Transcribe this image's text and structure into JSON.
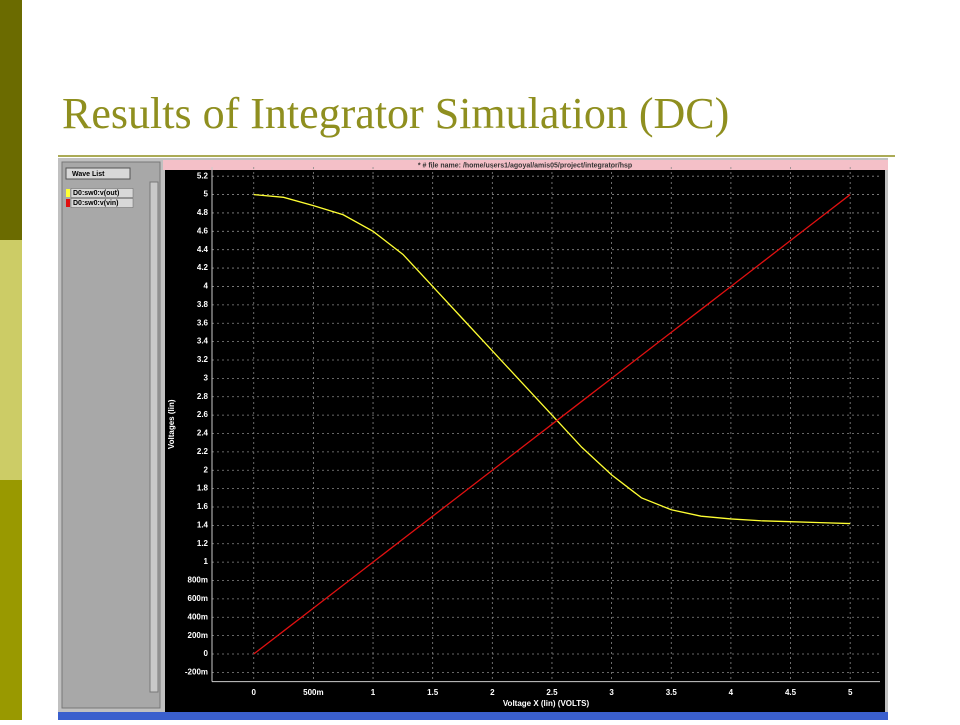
{
  "chart_data": {
    "type": "line",
    "title": "Results of Integrator Simulation (DC)",
    "subtitle": "* # file name: /home/users1/agoyal/amis05/project/integrator/hsp",
    "legend_title": "Wave List",
    "x_label": "Voltage X (lin) (VOLTS)",
    "y_label": "Voltages (lin)",
    "x": [
      0,
      0.25,
      0.5,
      0.75,
      1,
      1.25,
      1.5,
      1.75,
      2,
      2.25,
      2.5,
      2.75,
      3,
      3.25,
      3.5,
      3.75,
      4,
      4.25,
      4.5,
      4.75,
      5
    ],
    "series": [
      {
        "name": "D0:sw0:v(out)",
        "color": "#ffff33",
        "values": [
          5.0,
          4.97,
          4.88,
          4.78,
          4.6,
          4.35,
          4.0,
          3.65,
          3.3,
          2.95,
          2.6,
          2.25,
          1.95,
          1.7,
          1.57,
          1.5,
          1.47,
          1.45,
          1.44,
          1.43,
          1.42
        ]
      },
      {
        "name": "D0:sw0:v(vin)",
        "color": "#e01010",
        "values": [
          0,
          0.25,
          0.5,
          0.75,
          1,
          1.25,
          1.5,
          1.75,
          2,
          2.25,
          2.5,
          2.75,
          3,
          3.25,
          3.5,
          3.75,
          4,
          4.25,
          4.5,
          4.75,
          5
        ]
      }
    ],
    "xlim": [
      -0.35,
      5.25
    ],
    "ylim": [
      -0.3,
      5.3
    ],
    "xticks": [
      0,
      {
        "value": 0.5,
        "label": "500m"
      },
      1,
      1.5,
      2,
      2.5,
      3,
      3.5,
      4,
      4.5,
      5
    ],
    "yticks": [
      {
        "value": -0.2,
        "label": "-200m"
      },
      0,
      {
        "value": 0.2,
        "label": "200m"
      },
      {
        "value": 0.4,
        "label": "400m"
      },
      {
        "value": 0.6,
        "label": "600m"
      },
      {
        "value": 0.8,
        "label": "800m"
      },
      1,
      1.2,
      1.4,
      1.6,
      1.8,
      2,
      2.2,
      2.4,
      2.6,
      2.8,
      3,
      3.2,
      3.4,
      3.6,
      3.8,
      4,
      4.2,
      4.4,
      4.6,
      4.8,
      5,
      5.2
    ],
    "grid": true
  }
}
